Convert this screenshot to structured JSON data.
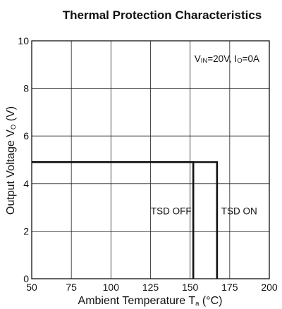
{
  "chart_data": {
    "type": "line",
    "title": "Thermal Protection Characteristics",
    "xlabel": {
      "main": "Ambient Temperature T",
      "sub": "a",
      "unit": " (°C)"
    },
    "ylabel": {
      "main": "Output Voltage V",
      "sub": "O",
      "unit": " (V)"
    },
    "xlim": [
      50,
      200
    ],
    "ylim": [
      0,
      10
    ],
    "xticks": [
      50,
      75,
      100,
      125,
      150,
      175,
      200
    ],
    "yticks": [
      0,
      2,
      4,
      6,
      8,
      10
    ],
    "grid": true,
    "condition": {
      "v_main": "V",
      "v_sub": "IN",
      "v_val": "=20V, ",
      "i_main": "I",
      "i_sub": "O",
      "i_val": "=0A"
    },
    "series": [
      {
        "name": "TSD OFF",
        "color": "#111111",
        "x": [
          50,
          152,
          152
        ],
        "y": [
          4.9,
          4.9,
          0
        ]
      },
      {
        "name": "TSD ON",
        "color": "#111111",
        "x": [
          50,
          167,
          167
        ],
        "y": [
          4.9,
          4.9,
          0
        ]
      }
    ],
    "annotations": [
      {
        "text": "TSD OFF",
        "x": 138,
        "y": 2.7
      },
      {
        "text": "TSD ON",
        "x": 181,
        "y": 2.7
      }
    ]
  }
}
